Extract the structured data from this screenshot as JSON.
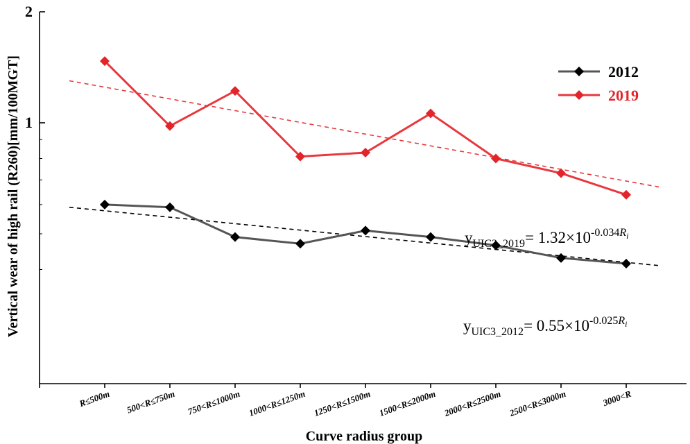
{
  "chart_data": {
    "type": "line",
    "ylabel": "Vertical wear of high rail (R260)[mm/100MGT]",
    "xlabel": "Curve radius group",
    "yscale": "log",
    "ylim": [
      0.4,
      2
    ],
    "yticks": [
      {
        "value": 2,
        "label": "2"
      },
      {
        "value": 1,
        "label": "1"
      }
    ],
    "categories": [
      "R≤500m",
      "500<R≤750m",
      "750<R≤1000m",
      "1000<R≤1250m",
      "1250<R≤1500m",
      "1500<R≤2000m",
      "2000<R≤2500m",
      "2500<R≤3000m",
      "3000<R"
    ],
    "series": [
      {
        "name": "2012",
        "color": "#555555",
        "marker_color": "#000000",
        "values": [
          0.6,
          0.59,
          0.49,
          0.47,
          0.51,
          0.49,
          0.465,
          0.43,
          0.415
        ]
      },
      {
        "name": "2019",
        "color": "#e8383d",
        "marker_color": "#e3242b",
        "values": [
          1.47,
          0.98,
          1.22,
          0.81,
          0.83,
          1.06,
          0.8,
          0.73,
          0.638
        ]
      }
    ],
    "trendlines": [
      {
        "series": "2019",
        "color": "#e8383d",
        "from": 1.3,
        "to": 0.67
      },
      {
        "series": "2012",
        "color": "#000000",
        "from": 0.59,
        "to": 0.41
      }
    ],
    "equations": [
      {
        "series": "2019",
        "y": "y",
        "subscript": "UIC3_2019",
        "rhs": "= 1.32×10",
        "exp": "-0.034",
        "var": "R",
        "var_sub": "i"
      },
      {
        "series": "2012",
        "y": "y",
        "subscript": "UIC3_2012",
        "rhs": "= 0.55×10",
        "exp": "-0.025",
        "var": "R",
        "var_sub": "i"
      }
    ],
    "legend_position": "top-right",
    "grid": false
  }
}
